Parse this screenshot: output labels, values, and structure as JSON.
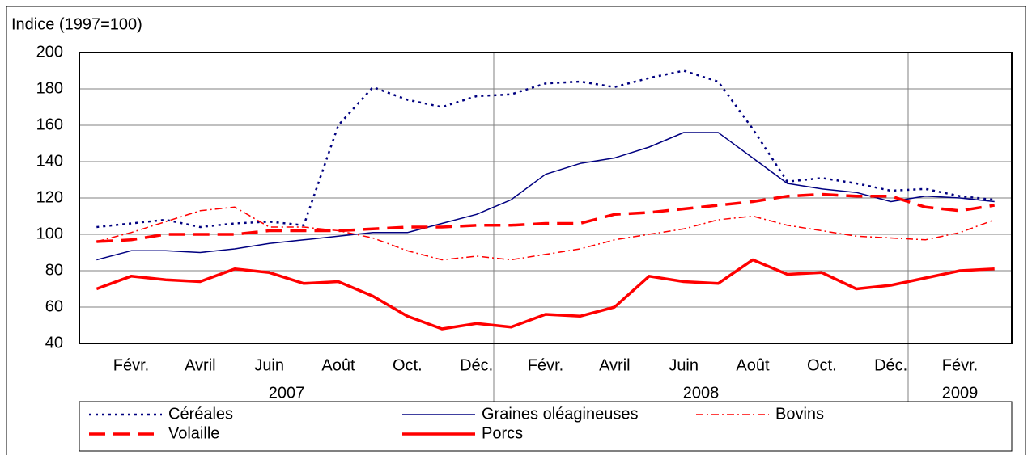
{
  "chart_data": {
    "type": "line",
    "y_axis_title": "Indice (1997=100)",
    "categories": [
      null,
      "Févr.",
      null,
      "Avril",
      null,
      "Juin",
      null,
      "Août",
      null,
      "Oct.",
      null,
      "Déc.",
      null,
      "Févr.",
      null,
      "Avril",
      null,
      "Juin",
      null,
      "Août",
      null,
      "Oct.",
      null,
      "Déc.",
      null,
      "Févr.",
      null
    ],
    "years": [
      "2007",
      "2008",
      "2009"
    ],
    "ylim": [
      40,
      200
    ],
    "yticks": [
      40,
      60,
      80,
      100,
      120,
      140,
      160,
      180,
      200
    ],
    "grid": true,
    "series": [
      {
        "name": "Céréales",
        "color": "#000080",
        "style": "dotted",
        "values": [
          104,
          106,
          108,
          104,
          106,
          107,
          105,
          160,
          181,
          174,
          170,
          176,
          177,
          183,
          184,
          181,
          186,
          190,
          184,
          158,
          129,
          131,
          128,
          124,
          125,
          121,
          119
        ]
      },
      {
        "name": "Graines oléagineuses",
        "color": "#000080",
        "style": "solid",
        "values": [
          86,
          91,
          91,
          90,
          92,
          95,
          97,
          99,
          101,
          101,
          106,
          111,
          119,
          133,
          139,
          142,
          148,
          156,
          156,
          142,
          128,
          125,
          123,
          118,
          121,
          120,
          118
        ]
      },
      {
        "name": "Bovins",
        "color": "#ff0000",
        "style": "dashdot",
        "values": [
          96,
          101,
          107,
          113,
          115,
          104,
          104,
          102,
          98,
          91,
          86,
          88,
          86,
          89,
          92,
          97,
          100,
          103,
          108,
          110,
          105,
          102,
          99,
          98,
          97,
          101,
          108
        ]
      },
      {
        "name": "Volaille",
        "color": "#ff0000",
        "style": "dashed",
        "values": [
          96,
          97,
          100,
          100,
          100,
          102,
          102,
          102,
          103,
          104,
          104,
          105,
          105,
          106,
          106,
          111,
          112,
          114,
          116,
          118,
          121,
          122,
          121,
          121,
          115,
          113,
          116
        ]
      },
      {
        "name": "Porcs",
        "color": "#ff0000",
        "style": "solid-thick",
        "values": [
          70,
          77,
          75,
          74,
          81,
          79,
          73,
          74,
          66,
          55,
          48,
          51,
          49,
          56,
          55,
          60,
          77,
          74,
          73,
          86,
          78,
          79,
          70,
          72,
          76,
          80,
          81
        ]
      }
    ]
  }
}
